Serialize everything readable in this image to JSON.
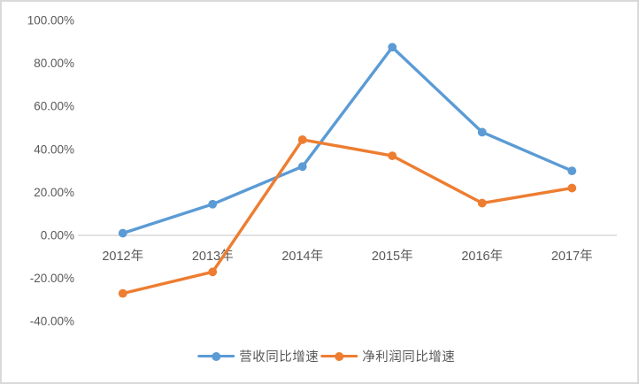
{
  "chart_data": {
    "type": "line",
    "title": "",
    "categories": [
      "2012年",
      "2013年",
      "2014年",
      "2015年",
      "2016年",
      "2017年"
    ],
    "series": [
      {
        "name": "营收同比增速",
        "color": "#5B9BD5",
        "values": [
          1,
          14.5,
          32,
          87.5,
          48,
          30
        ]
      },
      {
        "name": "净利润同比增速",
        "color": "#ED7D31",
        "values": [
          -27,
          -17,
          44.5,
          37,
          15,
          22
        ]
      }
    ],
    "value_unit": "%",
    "y_axis": {
      "min": -40,
      "max": 100,
      "step": 20,
      "tick_values": [
        100,
        80,
        60,
        40,
        20,
        0,
        -20,
        -40
      ],
      "tick_labels": [
        "100.00%",
        "80.00%",
        "60.00%",
        "40.00%",
        "20.00%",
        "0.00%",
        "-20.00%",
        "-40.00%"
      ]
    },
    "grid": false,
    "legend_position": "bottom",
    "colors": {
      "axis_line": "#D9D9D9",
      "text": "#595959",
      "background": "#FFFFFF",
      "frame_border": "#D9D9D9"
    }
  }
}
